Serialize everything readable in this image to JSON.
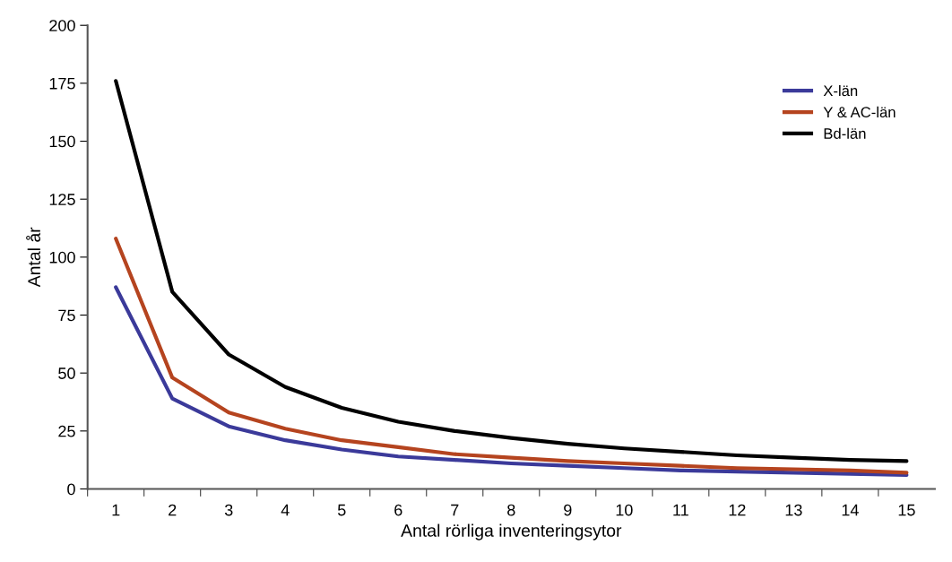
{
  "chart_data": {
    "type": "line",
    "xlabel": "Antal rörliga inventeringsytor",
    "ylabel": "Antal år",
    "categories": [
      "1",
      "2",
      "3",
      "4",
      "5",
      "6",
      "7",
      "8",
      "9",
      "10",
      "11",
      "12",
      "13",
      "14",
      "15"
    ],
    "series": [
      {
        "name": "X-län",
        "color": "#3b3a9a",
        "values": [
          87,
          39,
          27,
          21,
          17,
          14,
          12.5,
          11,
          10,
          9,
          8,
          7.5,
          7,
          6.5,
          6
        ]
      },
      {
        "name": "Y & AC-län",
        "color": "#b5441f",
        "values": [
          108,
          48,
          33,
          26,
          21,
          18,
          15,
          13.5,
          12,
          11,
          10,
          9,
          8.5,
          8,
          7
        ]
      },
      {
        "name": "Bd-län",
        "color": "#000000",
        "values": [
          176,
          85,
          58,
          44,
          35,
          29,
          25,
          22,
          19.5,
          17.5,
          16,
          14.5,
          13.5,
          12.5,
          12
        ]
      }
    ],
    "ylim": [
      0,
      200
    ],
    "yticks": [
      0,
      25,
      50,
      75,
      100,
      125,
      150,
      175,
      200
    ],
    "grid": false,
    "legend": "top right",
    "marker": "none",
    "line_style": "solid"
  }
}
